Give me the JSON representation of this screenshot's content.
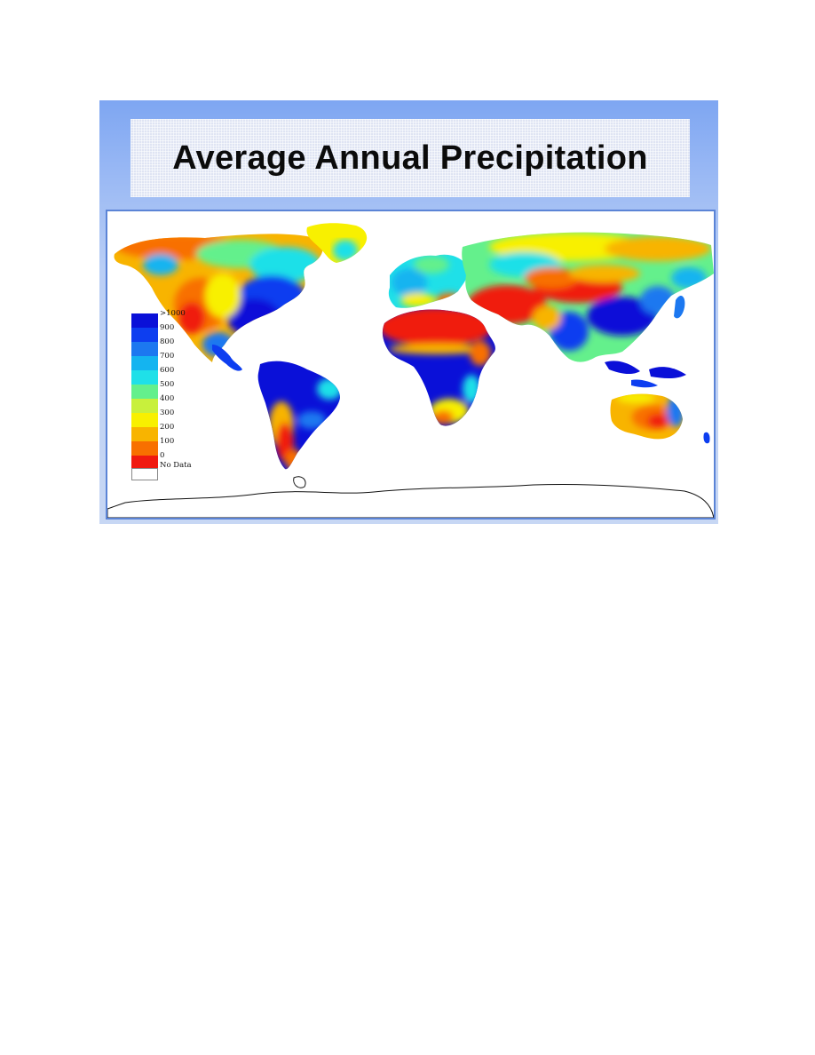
{
  "slide": {
    "title": "Average Annual Precipitation"
  },
  "map": {
    "type": "world choropleth",
    "legend": {
      "labels": [
        ">1000",
        "900",
        "800",
        "700",
        "600",
        "500",
        "400",
        "300",
        "200",
        "100",
        "0",
        "No Data"
      ],
      "colors": [
        "#0a10d8",
        "#0d3ef0",
        "#1c78f0",
        "#14b4f0",
        "#1fe0e8",
        "#64f08c",
        "#c8f03c",
        "#f8f000",
        "#f8b400",
        "#f87000",
        "#f01a10",
        "#ffffff"
      ]
    }
  }
}
